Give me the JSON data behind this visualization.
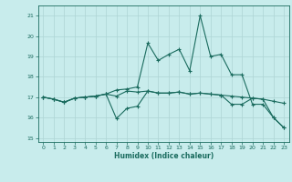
{
  "xlabel": "Humidex (Indice chaleur)",
  "x": [
    0,
    1,
    2,
    3,
    4,
    5,
    6,
    7,
    8,
    9,
    10,
    11,
    12,
    13,
    14,
    15,
    16,
    17,
    18,
    19,
    20,
    21,
    22,
    23
  ],
  "y_top": [
    17.0,
    16.9,
    16.75,
    16.95,
    17.0,
    17.05,
    17.15,
    17.35,
    17.4,
    17.5,
    19.65,
    18.8,
    19.1,
    19.35,
    18.3,
    21.0,
    19.0,
    19.1,
    18.1,
    18.1,
    16.65,
    16.65,
    16.0,
    15.5
  ],
  "y_mid": [
    17.0,
    16.9,
    16.75,
    16.95,
    17.0,
    17.05,
    17.15,
    17.05,
    17.3,
    17.25,
    17.3,
    17.2,
    17.2,
    17.25,
    17.15,
    17.2,
    17.15,
    17.1,
    17.05,
    17.0,
    16.95,
    16.9,
    16.8,
    16.7
  ],
  "y_bot": [
    17.0,
    16.9,
    16.75,
    16.95,
    17.0,
    17.05,
    17.15,
    15.95,
    16.45,
    16.55,
    17.3,
    17.2,
    17.2,
    17.25,
    17.15,
    17.2,
    17.15,
    17.1,
    16.65,
    16.65,
    16.95,
    16.9,
    16.0,
    15.5
  ],
  "line_color": "#1a6b5e",
  "bg_color": "#c8ecec",
  "grid_color": "#aed4d4",
  "ylim": [
    14.8,
    21.5
  ],
  "yticks": [
    15,
    16,
    17,
    18,
    19,
    20,
    21
  ],
  "xticks": [
    0,
    1,
    2,
    3,
    4,
    5,
    6,
    7,
    8,
    9,
    10,
    11,
    12,
    13,
    14,
    15,
    16,
    17,
    18,
    19,
    20,
    21,
    22,
    23
  ]
}
